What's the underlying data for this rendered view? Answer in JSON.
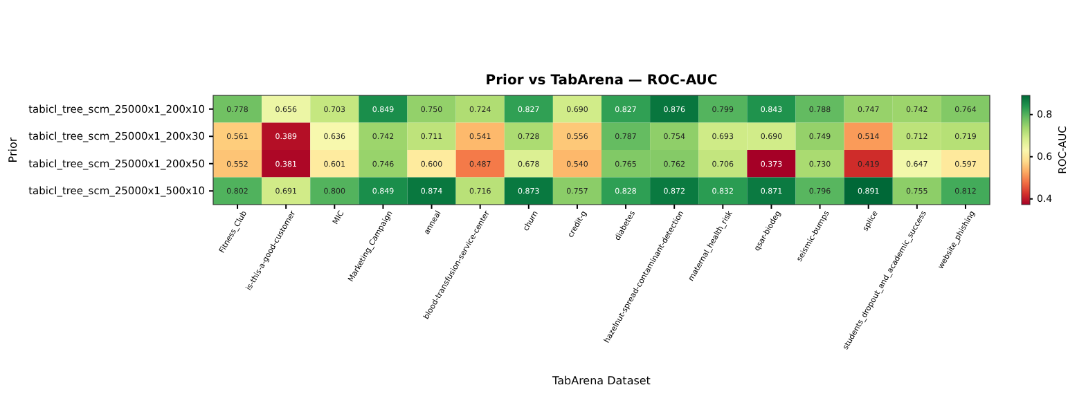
{
  "chart_data": {
    "type": "heatmap",
    "title": "Prior vs TabArena — ROC-AUC",
    "xlabel": "TabArena Dataset",
    "ylabel": "Prior",
    "clabel": "ROC-AUC",
    "categories": [
      "Fitness_Club",
      "is-this-a-good-customer",
      "MIC",
      "Marketing_Campaign",
      "anneal",
      "blood-transfusion-service-center",
      "churn",
      "credit-g",
      "diabetes",
      "hazelnut-spread-contaminant-detection",
      "maternal_health_risk",
      "qsar-biodeg",
      "seismic-bumps",
      "splice",
      "students_dropout_and_academic_success",
      "website_phishing"
    ],
    "y_categories": [
      "tabicl_tree_scm_25000x1_200x10",
      "tabicl_tree_scm_25000x1_200x30",
      "tabicl_tree_scm_25000x1_200x50",
      "tabicl_tree_scm_25000x1_500x10"
    ],
    "cells": [
      [
        0.778,
        0.656,
        0.703,
        0.849,
        0.75,
        0.724,
        0.827,
        0.69,
        0.827,
        0.876,
        0.799,
        0.843,
        0.788,
        0.747,
        0.742,
        0.764
      ],
      [
        0.561,
        0.389,
        0.636,
        0.742,
        0.711,
        0.541,
        0.728,
        0.556,
        0.787,
        0.754,
        0.693,
        0.69,
        0.749,
        0.514,
        0.712,
        0.719
      ],
      [
        0.552,
        0.381,
        0.601,
        0.746,
        0.6,
        0.487,
        0.678,
        0.54,
        0.765,
        0.762,
        0.706,
        0.373,
        0.73,
        0.419,
        0.647,
        0.597
      ],
      [
        0.802,
        0.691,
        0.8,
        0.849,
        0.874,
        0.716,
        0.873,
        0.757,
        0.828,
        0.872,
        0.832,
        0.871,
        0.796,
        0.891,
        0.755,
        0.812
      ]
    ],
    "cell_labels": [
      [
        "0.778",
        "0.656",
        "0.703",
        "0.849",
        "0.750",
        "0.724",
        "0.827",
        "0.690",
        "0.827",
        "0.876",
        "0.799",
        "0.843",
        "0.788",
        "0.747",
        "0.742",
        "0.764"
      ],
      [
        "0.561",
        "0.389",
        "0.636",
        "0.742",
        "0.711",
        "0.541",
        "0.728",
        "0.556",
        "0.787",
        "0.754",
        "0.693",
        "0.690",
        "0.749",
        "0.514",
        "0.712",
        "0.719"
      ],
      [
        "0.552",
        "0.381",
        "0.601",
        "0.746",
        "0.600",
        "0.487",
        "0.678",
        "0.540",
        "0.765",
        "0.762",
        "0.706",
        "0.373",
        "0.730",
        "0.419",
        "0.647",
        "0.597"
      ],
      [
        "0.802",
        "0.691",
        "0.800",
        "0.849",
        "0.874",
        "0.716",
        "0.873",
        "0.757",
        "0.828",
        "0.872",
        "0.832",
        "0.871",
        "0.796",
        "0.891",
        "0.755",
        "0.812"
      ]
    ],
    "clim": [
      0.373,
      0.891
    ],
    "cticks": [
      0.4,
      0.6,
      0.8
    ]
  }
}
